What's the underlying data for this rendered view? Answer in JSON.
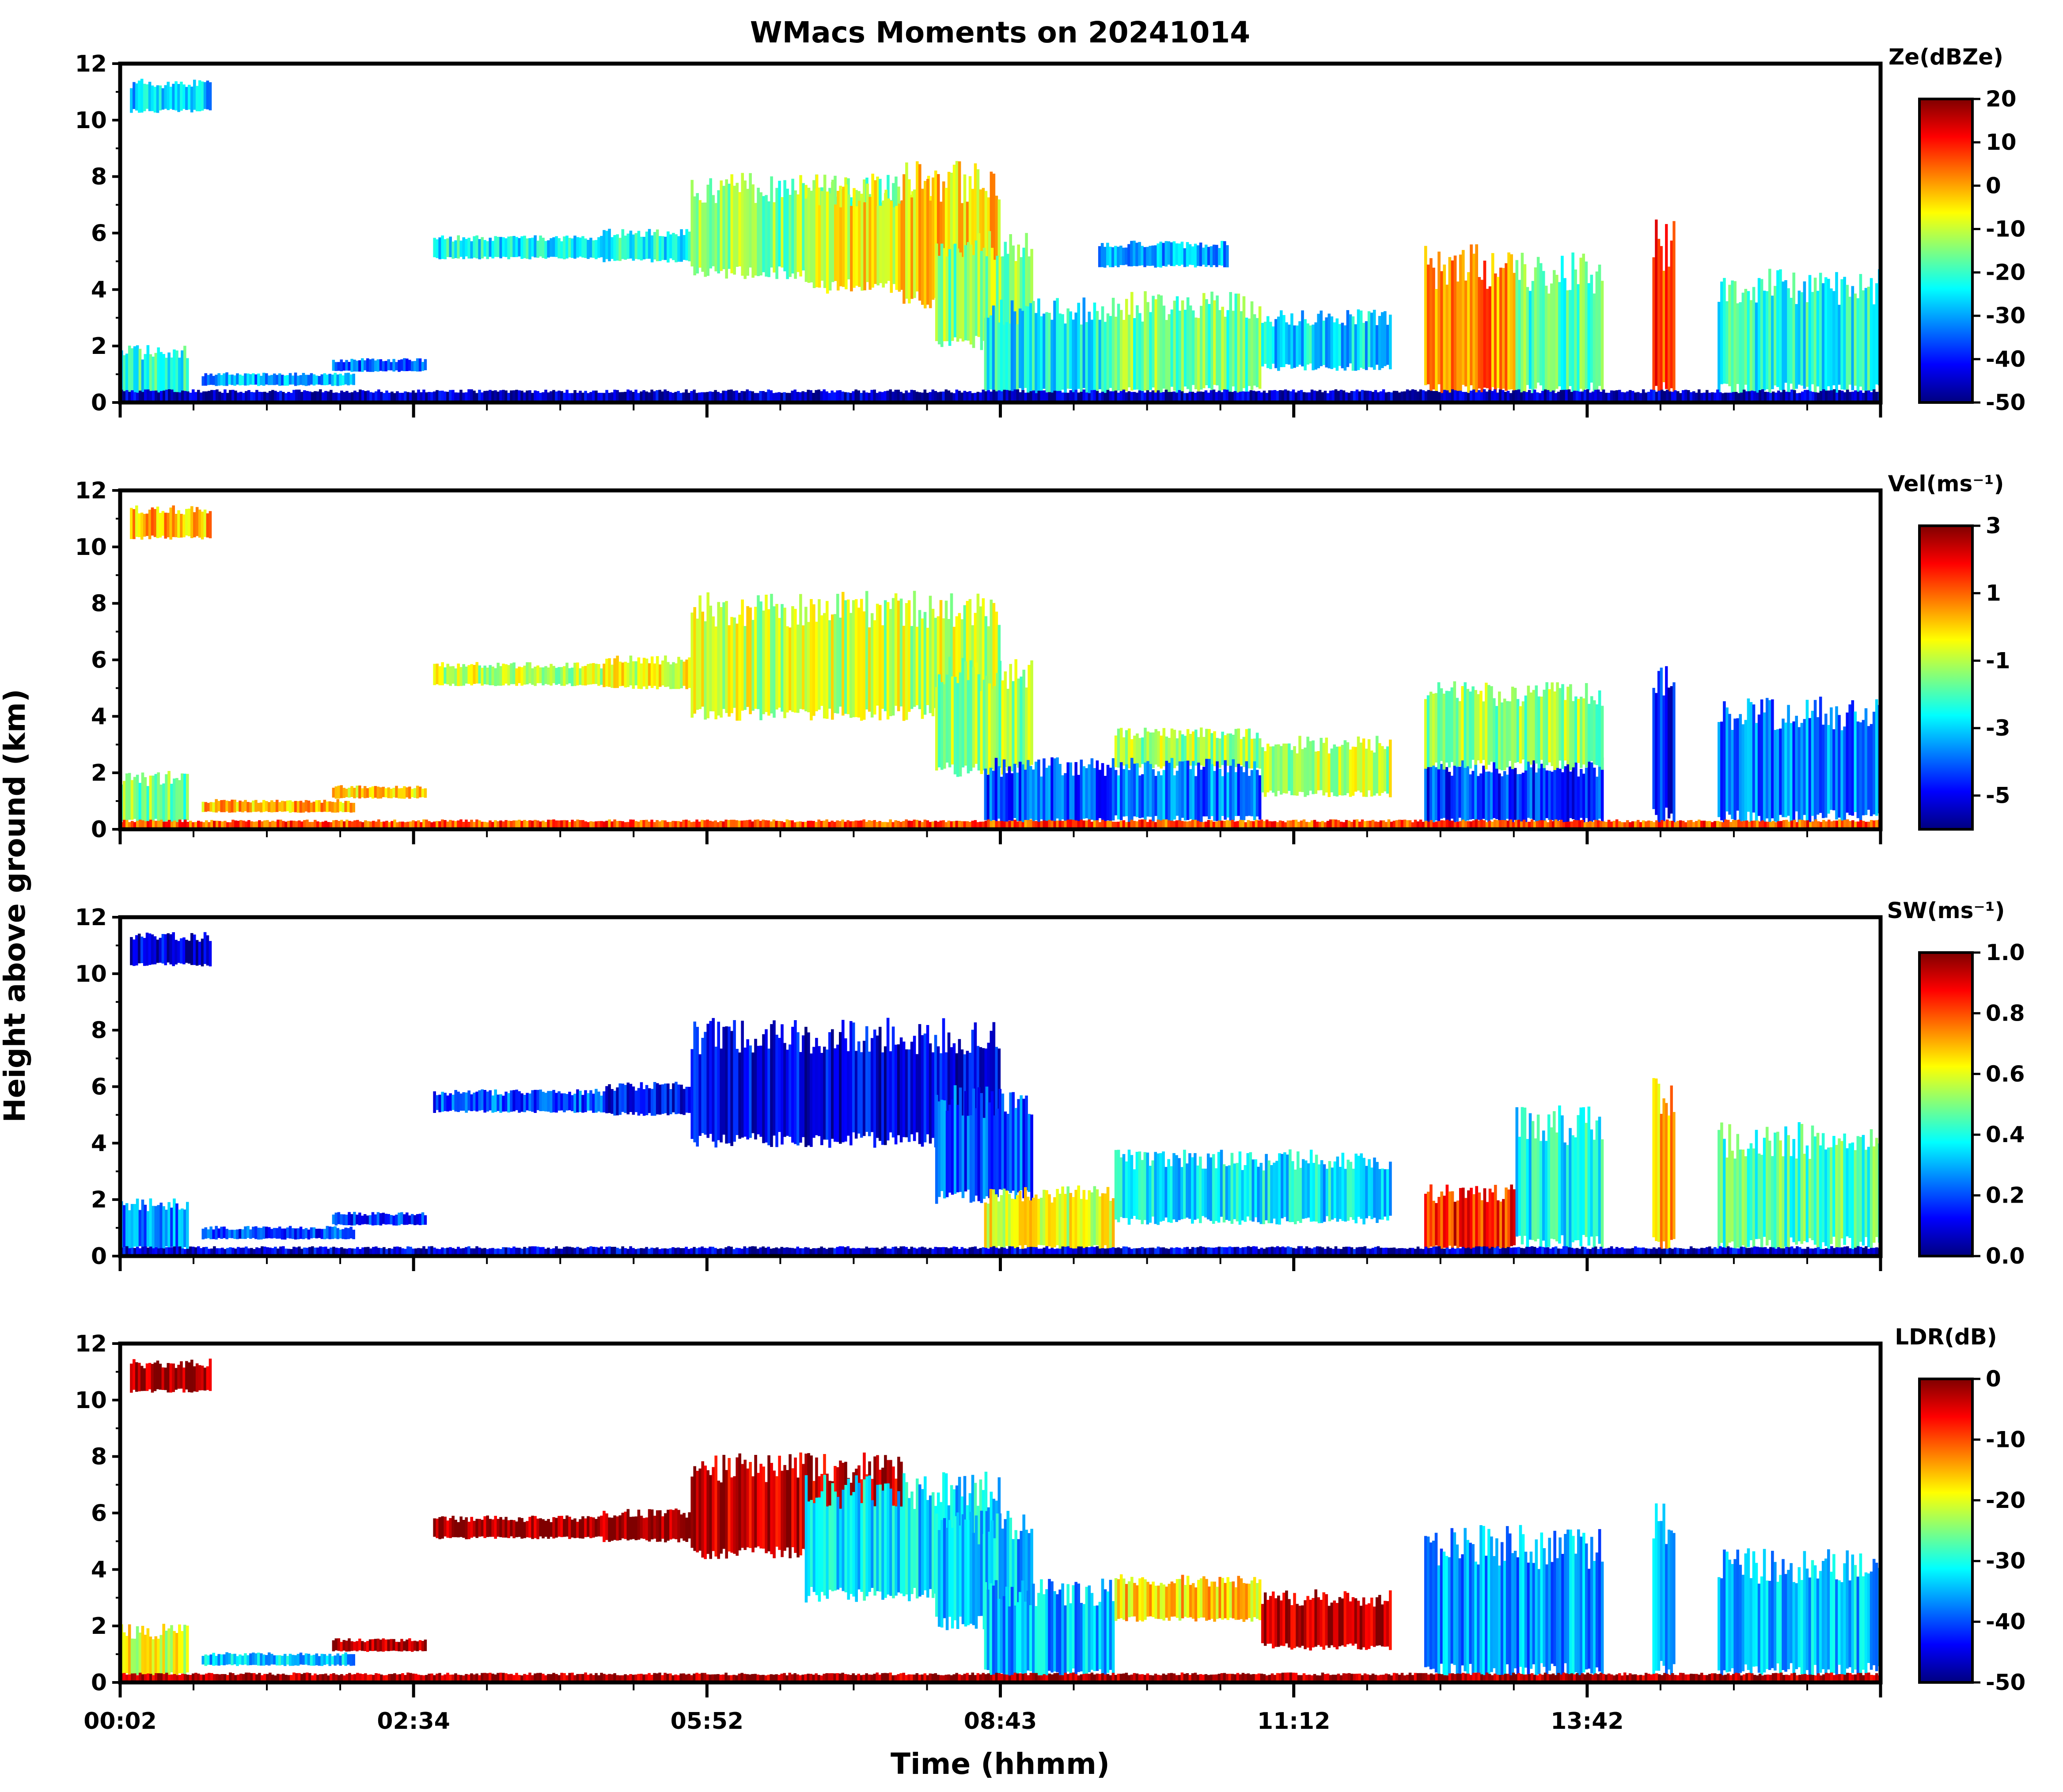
{
  "title": "WMacs Moments on 20241014",
  "xlabel": "Time (hhmm)",
  "ylabel": "Height above ground (km)",
  "colors": {
    "jet_stops": [
      "#00007f",
      "#0000ff",
      "#007fff",
      "#00ffff",
      "#7fff7f",
      "#ffff00",
      "#ff7f00",
      "#ff0000",
      "#7f0000"
    ]
  },
  "chart_data": [
    {
      "type": "heatmap",
      "panel": "Ze",
      "colorbar_title": "Ze(dBZe)",
      "colorbar_range": [
        -50,
        20
      ],
      "colorbar_ticks": [
        "20",
        "10",
        "0",
        "-10",
        "-20",
        "-30",
        "-40",
        "-50"
      ],
      "ylim": [
        0,
        12
      ],
      "yticks": [
        "12",
        "10",
        "8",
        "6",
        "4",
        "2",
        "0"
      ],
      "xticks": [
        "00:02",
        "02:34",
        "05:52",
        "08:43",
        "11:12",
        "13:42"
      ],
      "regions": [
        {
          "t": [
            0.3,
            2.8
          ],
          "h": [
            10.3,
            11.3
          ],
          "v": -28
        },
        {
          "t": [
            0.0,
            2.1
          ],
          "h": [
            0.2,
            1.8
          ],
          "v": -22
        },
        {
          "t": [
            2.5,
            7.2
          ],
          "h": [
            0.6,
            1.0
          ],
          "v": -30
        },
        {
          "t": [
            6.5,
            9.4
          ],
          "h": [
            1.1,
            1.5
          ],
          "v": -35
        },
        {
          "t": [
            9.6,
            14.8
          ],
          "h": [
            5.1,
            5.8
          ],
          "v": -24
        },
        {
          "t": [
            14.8,
            17.5
          ],
          "h": [
            5.0,
            6.0
          ],
          "v": -23
        },
        {
          "t": [
            17.5,
            24.0
          ],
          "h": [
            4.5,
            7.6
          ],
          "v": -15
        },
        {
          "t": [
            21.0,
            25.0
          ],
          "h": [
            4.0,
            7.5
          ],
          "v": -6
        },
        {
          "t": [
            24.0,
            27.0
          ],
          "h": [
            3.5,
            7.8
          ],
          "v": -3
        },
        {
          "t": [
            25.0,
            28.0
          ],
          "h": [
            2.0,
            5.5
          ],
          "v": -14
        },
        {
          "t": [
            26.5,
            30.5
          ],
          "h": [
            0.2,
            3.2
          ],
          "v": -24
        },
        {
          "t": [
            30.5,
            35.0
          ],
          "h": [
            0.3,
            3.4
          ],
          "v": -16
        },
        {
          "t": [
            35.0,
            39.0
          ],
          "h": [
            1.2,
            3.0
          ],
          "v": -26
        },
        {
          "t": [
            30.0,
            34.0
          ],
          "h": [
            4.8,
            5.6
          ],
          "v": -30
        },
        {
          "t": [
            40.0,
            42.8
          ],
          "h": [
            0.2,
            4.8
          ],
          "v": 2
        },
        {
          "t": [
            42.8,
            45.5
          ],
          "h": [
            0.3,
            4.6
          ],
          "v": -18
        },
        {
          "t": [
            47.0,
            47.7
          ],
          "h": [
            0.2,
            5.6
          ],
          "v": 6
        },
        {
          "t": [
            49.0,
            54.0
          ],
          "h": [
            0.3,
            4.1
          ],
          "v": -22
        },
        {
          "t": [
            0.0,
            54.0
          ],
          "h": [
            0.0,
            0.4
          ],
          "v": -46
        }
      ]
    },
    {
      "type": "heatmap",
      "panel": "Vel",
      "colorbar_title": "Vel(ms⁻¹)",
      "colorbar_range": [
        -6,
        3
      ],
      "colorbar_ticks": [
        "3",
        "1",
        "-1",
        "-3",
        "-5"
      ],
      "ylim": [
        0,
        12
      ],
      "yticks": [
        "12",
        "10",
        "8",
        "6",
        "4",
        "2",
        "0"
      ],
      "xticks": [
        "00:02",
        "02:34",
        "05:52",
        "08:43",
        "11:12",
        "13:42"
      ],
      "regions": [
        {
          "t": [
            0.3,
            2.8
          ],
          "h": [
            10.3,
            11.3
          ],
          "v": 0.2
        },
        {
          "t": [
            0.0,
            2.1
          ],
          "h": [
            0.2,
            1.8
          ],
          "v": -1.6
        },
        {
          "t": [
            2.5,
            7.2
          ],
          "h": [
            0.6,
            1.0
          ],
          "v": 0.2
        },
        {
          "t": [
            6.5,
            9.4
          ],
          "h": [
            1.1,
            1.5
          ],
          "v": 0.0
        },
        {
          "t": [
            9.6,
            14.8
          ],
          "h": [
            5.1,
            5.8
          ],
          "v": -0.9
        },
        {
          "t": [
            14.8,
            17.5
          ],
          "h": [
            5.0,
            6.0
          ],
          "v": -0.6
        },
        {
          "t": [
            17.5,
            27.0
          ],
          "h": [
            4.0,
            7.8
          ],
          "v": -0.9
        },
        {
          "t": [
            25.0,
            28.0
          ],
          "h": [
            2.0,
            5.5
          ],
          "v": -1.2
        },
        {
          "t": [
            26.5,
            30.5
          ],
          "h": [
            0.2,
            2.2
          ],
          "v": -4.2
        },
        {
          "t": [
            30.5,
            35.0
          ],
          "h": [
            2.2,
            3.4
          ],
          "v": -1.2
        },
        {
          "t": [
            30.5,
            35.0
          ],
          "h": [
            0.3,
            2.2
          ],
          "v": -3.8
        },
        {
          "t": [
            35.0,
            39.0
          ],
          "h": [
            1.2,
            3.0
          ],
          "v": -1.0
        },
        {
          "t": [
            40.0,
            45.5
          ],
          "h": [
            0.2,
            2.2
          ],
          "v": -4.4
        },
        {
          "t": [
            40.0,
            45.5
          ],
          "h": [
            2.2,
            4.8
          ],
          "v": -1.3
        },
        {
          "t": [
            47.0,
            47.7
          ],
          "h": [
            0.2,
            5.6
          ],
          "v": -4.8
        },
        {
          "t": [
            49.0,
            54.0
          ],
          "h": [
            0.3,
            4.1
          ],
          "v": -3.8
        },
        {
          "t": [
            0.0,
            54.0
          ],
          "h": [
            0.0,
            0.3
          ],
          "v": 1.2
        }
      ]
    },
    {
      "type": "heatmap",
      "panel": "SW",
      "colorbar_title": "SW(ms⁻¹)",
      "colorbar_range": [
        0,
        1
      ],
      "colorbar_ticks": [
        "1.0",
        "0.8",
        "0.6",
        "0.4",
        "0.2",
        "0.0"
      ],
      "ylim": [
        0,
        12
      ],
      "yticks": [
        "12",
        "10",
        "8",
        "6",
        "4",
        "2",
        "0"
      ],
      "xticks": [
        "00:02",
        "02:34",
        "05:52",
        "08:43",
        "11:12",
        "13:42"
      ],
      "regions": [
        {
          "t": [
            0.3,
            2.8
          ],
          "h": [
            10.3,
            11.3
          ],
          "v": 0.08
        },
        {
          "t": [
            0.0,
            2.1
          ],
          "h": [
            0.2,
            1.8
          ],
          "v": 0.25
        },
        {
          "t": [
            2.5,
            7.2
          ],
          "h": [
            0.6,
            1.0
          ],
          "v": 0.18
        },
        {
          "t": [
            6.5,
            9.4
          ],
          "h": [
            1.1,
            1.5
          ],
          "v": 0.18
        },
        {
          "t": [
            9.6,
            14.8
          ],
          "h": [
            5.1,
            5.8
          ],
          "v": 0.2
        },
        {
          "t": [
            14.8,
            17.5
          ],
          "h": [
            5.0,
            6.0
          ],
          "v": 0.12
        },
        {
          "t": [
            17.5,
            27.0
          ],
          "h": [
            4.0,
            7.8
          ],
          "v": 0.1
        },
        {
          "t": [
            25.0,
            28.0
          ],
          "h": [
            2.0,
            5.5
          ],
          "v": 0.2
        },
        {
          "t": [
            26.5,
            30.5
          ],
          "h": [
            0.2,
            2.2
          ],
          "v": 0.6
        },
        {
          "t": [
            30.5,
            39.0
          ],
          "h": [
            1.2,
            3.4
          ],
          "v": 0.35
        },
        {
          "t": [
            40.0,
            42.8
          ],
          "h": [
            0.2,
            2.2
          ],
          "v": 0.85
        },
        {
          "t": [
            42.8,
            45.5
          ],
          "h": [
            0.3,
            4.6
          ],
          "v": 0.38
        },
        {
          "t": [
            47.0,
            47.7
          ],
          "h": [
            0.2,
            5.6
          ],
          "v": 0.7
        },
        {
          "t": [
            49.0,
            54.0
          ],
          "h": [
            0.3,
            4.1
          ],
          "v": 0.45
        },
        {
          "t": [
            0.0,
            54.0
          ],
          "h": [
            0.0,
            0.3
          ],
          "v": 0.08
        }
      ]
    },
    {
      "type": "heatmap",
      "panel": "LDR",
      "colorbar_title": "LDR(dB)",
      "colorbar_range": [
        -50,
        0
      ],
      "colorbar_ticks": [
        "0",
        "-10",
        "-20",
        "-30",
        "-40",
        "-50"
      ],
      "ylim": [
        0,
        12
      ],
      "yticks": [
        "12",
        "10",
        "8",
        "6",
        "4",
        "2",
        "0"
      ],
      "xticks": [
        "00:02",
        "02:34",
        "05:52",
        "08:43",
        "11:12",
        "13:42"
      ],
      "regions": [
        {
          "t": [
            0.3,
            2.8
          ],
          "h": [
            10.3,
            11.3
          ],
          "v": -1
        },
        {
          "t": [
            0.0,
            2.1
          ],
          "h": [
            0.2,
            1.8
          ],
          "v": -20
        },
        {
          "t": [
            2.5,
            7.2
          ],
          "h": [
            0.6,
            1.0
          ],
          "v": -34
        },
        {
          "t": [
            6.5,
            9.4
          ],
          "h": [
            1.1,
            1.5
          ],
          "v": -2
        },
        {
          "t": [
            9.6,
            14.8
          ],
          "h": [
            5.1,
            5.8
          ],
          "v": -1
        },
        {
          "t": [
            14.8,
            17.5
          ],
          "h": [
            5.0,
            6.0
          ],
          "v": -1
        },
        {
          "t": [
            17.5,
            24.0
          ],
          "h": [
            4.5,
            7.6
          ],
          "v": -3
        },
        {
          "t": [
            21.0,
            27.0
          ],
          "h": [
            3.0,
            6.8
          ],
          "v": -33
        },
        {
          "t": [
            25.0,
            28.0
          ],
          "h": [
            2.0,
            5.5
          ],
          "v": -34
        },
        {
          "t": [
            26.5,
            30.5
          ],
          "h": [
            0.2,
            3.2
          ],
          "v": -35
        },
        {
          "t": [
            30.5,
            35.0
          ],
          "h": [
            2.2,
            3.6
          ],
          "v": -17
        },
        {
          "t": [
            35.0,
            39.0
          ],
          "h": [
            1.2,
            3.0
          ],
          "v": -2
        },
        {
          "t": [
            40.0,
            45.5
          ],
          "h": [
            0.2,
            4.8
          ],
          "v": -36
        },
        {
          "t": [
            47.0,
            47.7
          ],
          "h": [
            0.2,
            5.6
          ],
          "v": -35
        },
        {
          "t": [
            49.0,
            54.0
          ],
          "h": [
            0.3,
            4.1
          ],
          "v": -34
        },
        {
          "t": [
            0.0,
            54.0
          ],
          "h": [
            0.0,
            0.3
          ],
          "v": -2
        }
      ]
    }
  ]
}
